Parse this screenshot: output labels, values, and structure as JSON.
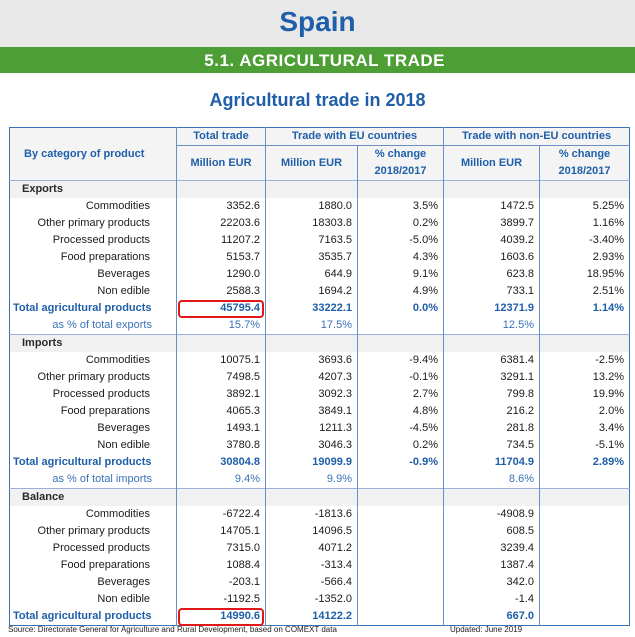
{
  "country": "Spain",
  "section_title": "5.1. AGRICULTURAL TRADE",
  "table_title": "Agricultural trade in 2018",
  "header": {
    "category": "By category of product",
    "total_trade": "Total trade",
    "eu_trade": "Trade with EU countries",
    "non_eu_trade": "Trade with non-EU countries",
    "unit_total": "Million EUR",
    "unit_eu": "Million EUR",
    "change_eu": "% change 2018/2017",
    "unit_non_eu": "Million EUR",
    "change_non_eu": "% change 2018/2017"
  },
  "exports": {
    "title": "Exports",
    "rows": [
      {
        "label": "Commodities",
        "total": "3352.6",
        "eu": "1880.0",
        "eu_change": "3.5%",
        "non_eu": "1472.5",
        "non_eu_change": "5.25%"
      },
      {
        "label": "Other primary products",
        "total": "22203.6",
        "eu": "18303.8",
        "eu_change": "0.2%",
        "non_eu": "3899.7",
        "non_eu_change": "1.16%"
      },
      {
        "label": "Processed products",
        "total": "11207.2",
        "eu": "7163.5",
        "eu_change": "-5.0%",
        "non_eu": "4039.2",
        "non_eu_change": "-3.40%"
      },
      {
        "label": "Food preparations",
        "total": "5153.7",
        "eu": "3535.7",
        "eu_change": "4.3%",
        "non_eu": "1603.6",
        "non_eu_change": "2.93%"
      },
      {
        "label": "Beverages",
        "total": "1290.0",
        "eu": "644.9",
        "eu_change": "9.1%",
        "non_eu": "623.8",
        "non_eu_change": "18.95%"
      },
      {
        "label": "Non edible",
        "total": "2588.3",
        "eu": "1694.2",
        "eu_change": "4.9%",
        "non_eu": "733.1",
        "non_eu_change": "2.51%"
      }
    ],
    "total": {
      "label": "Total agricultural products",
      "total": "45795.4",
      "eu": "33222.1",
      "eu_change": "0.0%",
      "non_eu": "12371.9",
      "non_eu_change": "1.14%"
    },
    "share": {
      "label": "as % of total exports",
      "total": "15.7%",
      "eu": "17.5%",
      "non_eu": "12.5%"
    }
  },
  "imports": {
    "title": "Imports",
    "rows": [
      {
        "label": "Commodities",
        "total": "10075.1",
        "eu": "3693.6",
        "eu_change": "-9.4%",
        "non_eu": "6381.4",
        "non_eu_change": "-2.5%"
      },
      {
        "label": "Other primary products",
        "total": "7498.5",
        "eu": "4207.3",
        "eu_change": "-0.1%",
        "non_eu": "3291.1",
        "non_eu_change": "13.2%"
      },
      {
        "label": "Processed products",
        "total": "3892.1",
        "eu": "3092.3",
        "eu_change": "2.7%",
        "non_eu": "799.8",
        "non_eu_change": "19.9%"
      },
      {
        "label": "Food preparations",
        "total": "4065.3",
        "eu": "3849.1",
        "eu_change": "4.8%",
        "non_eu": "216.2",
        "non_eu_change": "2.0%"
      },
      {
        "label": "Beverages",
        "total": "1493.1",
        "eu": "1211.3",
        "eu_change": "-4.5%",
        "non_eu": "281.8",
        "non_eu_change": "3.4%"
      },
      {
        "label": "Non edible",
        "total": "3780.8",
        "eu": "3046.3",
        "eu_change": "0.2%",
        "non_eu": "734.5",
        "non_eu_change": "-5.1%"
      }
    ],
    "total": {
      "label": "Total agricultural products",
      "total": "30804.8",
      "eu": "19099.9",
      "eu_change": "-0.9%",
      "non_eu": "11704.9",
      "non_eu_change": "2.89%"
    },
    "share": {
      "label": "as % of total imports",
      "total": "9.4%",
      "eu": "9.9%",
      "non_eu": "8.6%"
    }
  },
  "balance": {
    "title": "Balance",
    "rows": [
      {
        "label": "Commodities",
        "total": "-6722.4",
        "eu": "-1813.6",
        "non_eu": "-4908.9"
      },
      {
        "label": "Other primary products",
        "total": "14705.1",
        "eu": "14096.5",
        "non_eu": "608.5"
      },
      {
        "label": "Processed products",
        "total": "7315.0",
        "eu": "4071.2",
        "non_eu": "3239.4"
      },
      {
        "label": "Food preparations",
        "total": "1088.4",
        "eu": "-313.4",
        "non_eu": "1387.4"
      },
      {
        "label": "Beverages",
        "total": "-203.1",
        "eu": "-566.4",
        "non_eu": "342.0"
      },
      {
        "label": "Non edible",
        "total": "-1192.5",
        "eu": "-1352.0",
        "non_eu": "-1.4"
      }
    ],
    "total": {
      "label": "Total agricultural products",
      "total": "14990.6",
      "eu": "14122.2",
      "non_eu": "667.0"
    }
  },
  "footer": {
    "source": "Source: Directorate General for Agriculture and Rural Development, based on COMEXT data",
    "updated": "Updated: June 2019"
  },
  "colors": {
    "title_blue": "#1f5ea8",
    "section_green": "#4c9e35",
    "highlight_red": "#e01818"
  }
}
